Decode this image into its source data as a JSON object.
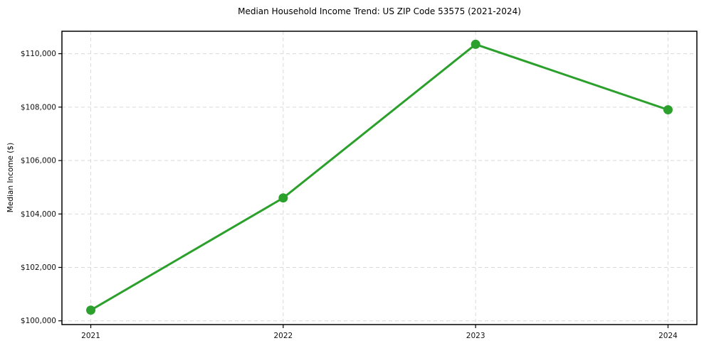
{
  "figure": {
    "background_color": "#ffffff"
  },
  "chart_data": {
    "type": "line",
    "title": "Median Household Income Trend: US ZIP Code 53575 (2021-2024)",
    "xlabel": "",
    "ylabel": "Median Income ($)",
    "x": [
      2021,
      2022,
      2023,
      2024
    ],
    "values": [
      100400,
      104600,
      110350,
      107900
    ],
    "x_tick_labels": [
      "2021",
      "2022",
      "2023",
      "2024"
    ],
    "y_ticks": [
      100000,
      102000,
      104000,
      106000,
      108000,
      110000
    ],
    "y_tick_labels": [
      "$100,000",
      "$102,000",
      "$104,000",
      "$106,000",
      "$108,000",
      "$110,000"
    ],
    "xlim": [
      2020.85,
      2024.15
    ],
    "ylim": [
      99860,
      110840
    ],
    "grid": true,
    "grid_style": "dashed",
    "legend": "none",
    "line_color": "#2ca02c",
    "marker": "circle",
    "grid_color": "#d9d9d9",
    "axis_color": "#000000",
    "text_color": "#111111"
  }
}
